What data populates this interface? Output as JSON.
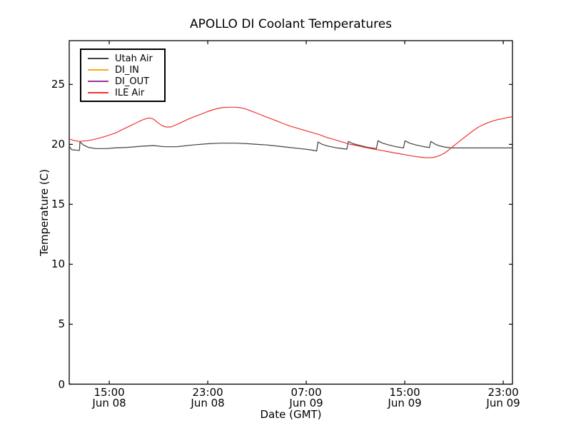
{
  "chart_data": {
    "type": "line",
    "title": "APOLLO DI Coolant Temperatures",
    "xlabel": "Date (GMT)",
    "ylabel": "Temperature (C)",
    "grid": false,
    "legend_position": "upper-left",
    "xlim_hours_from_jun08_0000": [
      11.75,
      47.75
    ],
    "ylim": [
      0,
      28.65
    ],
    "xticks": [
      {
        "hours": 15,
        "time": "15:00",
        "date": "Jun 08"
      },
      {
        "hours": 23,
        "time": "23:00",
        "date": "Jun 08"
      },
      {
        "hours": 31,
        "time": "07:00",
        "date": "Jun 09"
      },
      {
        "hours": 39,
        "time": "15:00",
        "date": "Jun 09"
      },
      {
        "hours": 47,
        "time": "23:00",
        "date": "Jun 09"
      }
    ],
    "yticks": [
      {
        "value": 0,
        "label": "0"
      },
      {
        "value": 5,
        "label": "5"
      },
      {
        "value": 10,
        "label": "10"
      },
      {
        "value": 15,
        "label": "15"
      },
      {
        "value": 20,
        "label": "20"
      },
      {
        "value": 25,
        "label": "25"
      }
    ],
    "series": [
      {
        "name": "Utah Air",
        "color": "#404040",
        "points": [
          [
            11.75,
            19.85
          ],
          [
            11.95,
            19.55
          ],
          [
            12.5,
            19.5
          ],
          [
            12.58,
            19.5
          ],
          [
            12.62,
            20.2
          ],
          [
            12.9,
            19.95
          ],
          [
            13.3,
            19.75
          ],
          [
            13.9,
            19.65
          ],
          [
            14.8,
            19.65
          ],
          [
            15.4,
            19.7
          ],
          [
            16.5,
            19.75
          ],
          [
            17.7,
            19.85
          ],
          [
            18.6,
            19.9
          ],
          [
            19.5,
            19.8
          ],
          [
            20.5,
            19.8
          ],
          [
            21.8,
            19.95
          ],
          [
            23.0,
            20.05
          ],
          [
            24.0,
            20.1
          ],
          [
            25.3,
            20.1
          ],
          [
            26.3,
            20.05
          ],
          [
            27.0,
            20.0
          ],
          [
            27.8,
            19.95
          ],
          [
            28.7,
            19.85
          ],
          [
            29.6,
            19.75
          ],
          [
            30.5,
            19.65
          ],
          [
            31.3,
            19.55
          ],
          [
            31.85,
            19.45
          ],
          [
            31.95,
            20.2
          ],
          [
            32.3,
            20.0
          ],
          [
            32.8,
            19.85
          ],
          [
            33.4,
            19.72
          ],
          [
            34.3,
            19.6
          ],
          [
            34.42,
            20.25
          ],
          [
            34.8,
            20.05
          ],
          [
            35.4,
            19.9
          ],
          [
            36.0,
            19.75
          ],
          [
            36.7,
            19.65
          ],
          [
            36.82,
            20.3
          ],
          [
            37.2,
            20.1
          ],
          [
            37.7,
            19.95
          ],
          [
            38.3,
            19.8
          ],
          [
            38.9,
            19.7
          ],
          [
            39.02,
            20.3
          ],
          [
            39.4,
            20.1
          ],
          [
            39.9,
            19.95
          ],
          [
            40.5,
            19.82
          ],
          [
            41.0,
            19.73
          ],
          [
            41.12,
            20.25
          ],
          [
            41.5,
            20.0
          ],
          [
            41.9,
            19.85
          ],
          [
            42.4,
            19.75
          ],
          [
            42.9,
            19.7
          ],
          [
            43.5,
            19.7
          ],
          [
            45.0,
            19.7
          ],
          [
            46.5,
            19.7
          ],
          [
            47.75,
            19.7
          ]
        ]
      },
      {
        "name": "DI_IN",
        "color": "#ffa520",
        "points": []
      },
      {
        "name": "DI_OUT",
        "color": "#993399",
        "points": []
      },
      {
        "name": "ILE Air",
        "color": "#ee3333",
        "points": [
          [
            11.75,
            20.45
          ],
          [
            12.2,
            20.3
          ],
          [
            12.6,
            20.25
          ],
          [
            13.2,
            20.3
          ],
          [
            13.7,
            20.4
          ],
          [
            14.3,
            20.55
          ],
          [
            14.8,
            20.7
          ],
          [
            15.5,
            20.95
          ],
          [
            16.0,
            21.2
          ],
          [
            16.6,
            21.5
          ],
          [
            17.1,
            21.75
          ],
          [
            17.6,
            22.0
          ],
          [
            18.0,
            22.15
          ],
          [
            18.3,
            22.2
          ],
          [
            18.6,
            22.1
          ],
          [
            18.9,
            21.85
          ],
          [
            19.3,
            21.55
          ],
          [
            19.6,
            21.45
          ],
          [
            20.0,
            21.45
          ],
          [
            20.5,
            21.65
          ],
          [
            20.9,
            21.85
          ],
          [
            21.4,
            22.1
          ],
          [
            21.9,
            22.3
          ],
          [
            22.4,
            22.5
          ],
          [
            22.9,
            22.7
          ],
          [
            23.3,
            22.85
          ],
          [
            23.8,
            23.0
          ],
          [
            24.3,
            23.08
          ],
          [
            24.8,
            23.1
          ],
          [
            25.3,
            23.1
          ],
          [
            25.7,
            23.05
          ],
          [
            26.1,
            22.95
          ],
          [
            26.6,
            22.75
          ],
          [
            27.1,
            22.55
          ],
          [
            27.6,
            22.35
          ],
          [
            28.1,
            22.15
          ],
          [
            28.6,
            21.95
          ],
          [
            29.1,
            21.75
          ],
          [
            29.6,
            21.55
          ],
          [
            30.1,
            21.4
          ],
          [
            30.6,
            21.25
          ],
          [
            31.1,
            21.1
          ],
          [
            31.6,
            20.95
          ],
          [
            32.1,
            20.8
          ],
          [
            32.6,
            20.6
          ],
          [
            33.1,
            20.45
          ],
          [
            33.6,
            20.3
          ],
          [
            34.1,
            20.15
          ],
          [
            34.6,
            20.0
          ],
          [
            35.1,
            19.9
          ],
          [
            35.6,
            19.78
          ],
          [
            36.1,
            19.68
          ],
          [
            36.6,
            19.58
          ],
          [
            37.1,
            19.5
          ],
          [
            37.6,
            19.4
          ],
          [
            38.1,
            19.3
          ],
          [
            38.6,
            19.22
          ],
          [
            39.1,
            19.12
          ],
          [
            39.6,
            19.03
          ],
          [
            40.1,
            18.95
          ],
          [
            40.6,
            18.9
          ],
          [
            41.0,
            18.88
          ],
          [
            41.4,
            18.92
          ],
          [
            41.8,
            19.05
          ],
          [
            42.2,
            19.25
          ],
          [
            42.6,
            19.55
          ],
          [
            43.0,
            19.9
          ],
          [
            43.5,
            20.3
          ],
          [
            44.0,
            20.7
          ],
          [
            44.5,
            21.1
          ],
          [
            45.0,
            21.45
          ],
          [
            45.5,
            21.7
          ],
          [
            46.0,
            21.9
          ],
          [
            46.5,
            22.05
          ],
          [
            47.0,
            22.15
          ],
          [
            47.4,
            22.25
          ],
          [
            47.75,
            22.3
          ]
        ]
      }
    ]
  }
}
